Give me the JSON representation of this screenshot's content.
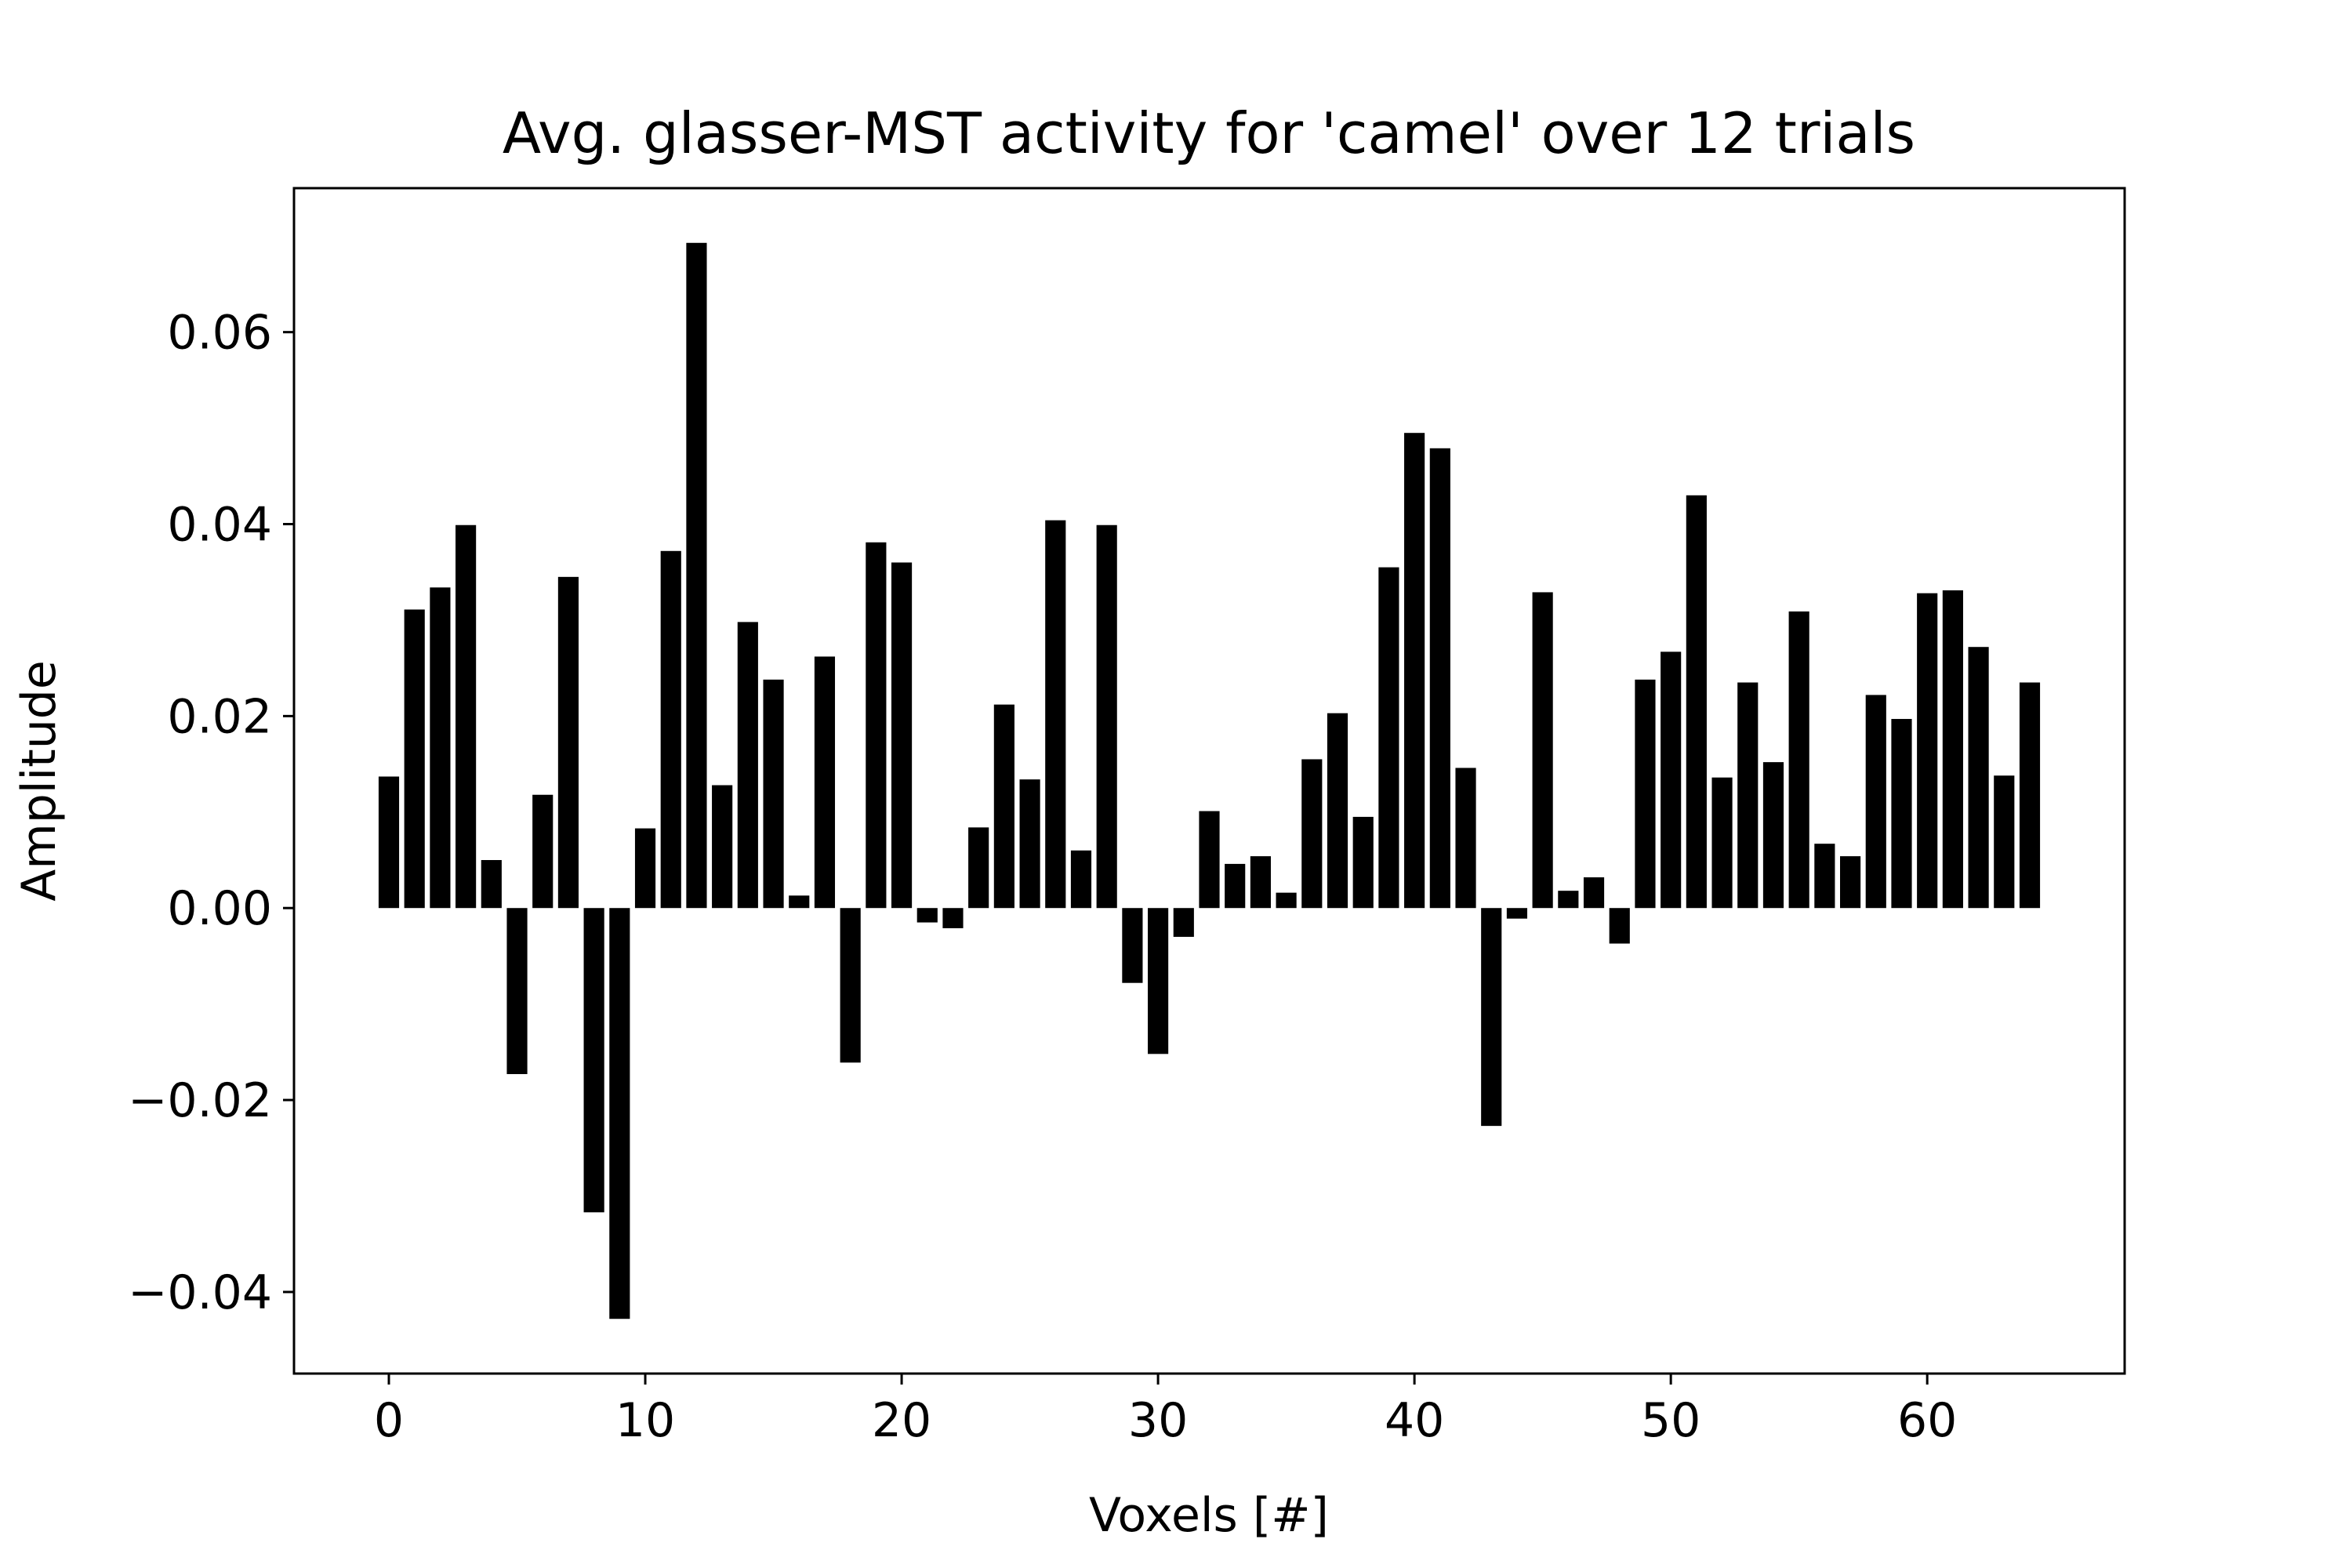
{
  "chart_data": {
    "type": "bar",
    "title": "Avg. glasser-MST activity for 'camel' over 12 trials",
    "xlabel": "Voxels [#]",
    "ylabel": "Amplitude",
    "x": [
      0,
      1,
      2,
      3,
      4,
      5,
      6,
      7,
      8,
      9,
      10,
      11,
      12,
      13,
      14,
      15,
      16,
      17,
      18,
      19,
      20,
      21,
      22,
      23,
      24,
      25,
      26,
      27,
      28,
      29,
      30,
      31,
      32,
      33,
      34,
      35,
      36,
      37,
      38,
      39,
      40,
      41,
      42,
      43,
      44,
      45,
      46,
      47,
      48,
      49,
      50,
      51,
      52,
      53,
      54,
      55,
      56,
      57,
      58,
      59,
      60,
      61,
      62,
      63,
      64
    ],
    "values": [
      0.0137,
      0.0311,
      0.0334,
      0.0399,
      0.005,
      -0.0173,
      0.0118,
      0.0345,
      -0.0317,
      -0.0428,
      0.0083,
      0.0372,
      0.0693,
      0.0128,
      0.0298,
      0.0238,
      0.0013,
      0.0262,
      -0.0161,
      0.0381,
      0.036,
      -0.0015,
      -0.0021,
      0.0084,
      0.0212,
      0.0134,
      0.0404,
      0.006,
      0.0399,
      -0.0078,
      -0.0152,
      -0.003,
      0.0101,
      0.0046,
      0.0054,
      0.0016,
      0.0155,
      0.0203,
      0.0095,
      0.0355,
      0.0495,
      0.0479,
      0.0146,
      -0.0227,
      -0.0011,
      0.0329,
      0.0018,
      0.0032,
      -0.0037,
      0.0238,
      0.0267,
      0.043,
      0.0136,
      0.0235,
      0.0152,
      0.0309,
      0.0067,
      0.0054,
      0.0222,
      0.0197,
      0.0328,
      0.0331,
      0.0272,
      0.0138,
      0.0235
    ],
    "bar_color": "#000000",
    "xlim": [
      -3.7,
      67.7
    ],
    "ylim": [
      -0.0485,
      0.075
    ],
    "xticks": [
      0,
      10,
      20,
      30,
      40,
      50,
      60
    ],
    "xtick_labels": [
      "0",
      "10",
      "20",
      "30",
      "40",
      "50",
      "60"
    ],
    "yticks": [
      -0.04,
      -0.02,
      0.0,
      0.02,
      0.04,
      0.06
    ],
    "ytick_labels": [
      "−0.04",
      "−0.02",
      "0.00",
      "0.02",
      "0.04",
      "0.06"
    ],
    "grid": false,
    "legend": null
  }
}
